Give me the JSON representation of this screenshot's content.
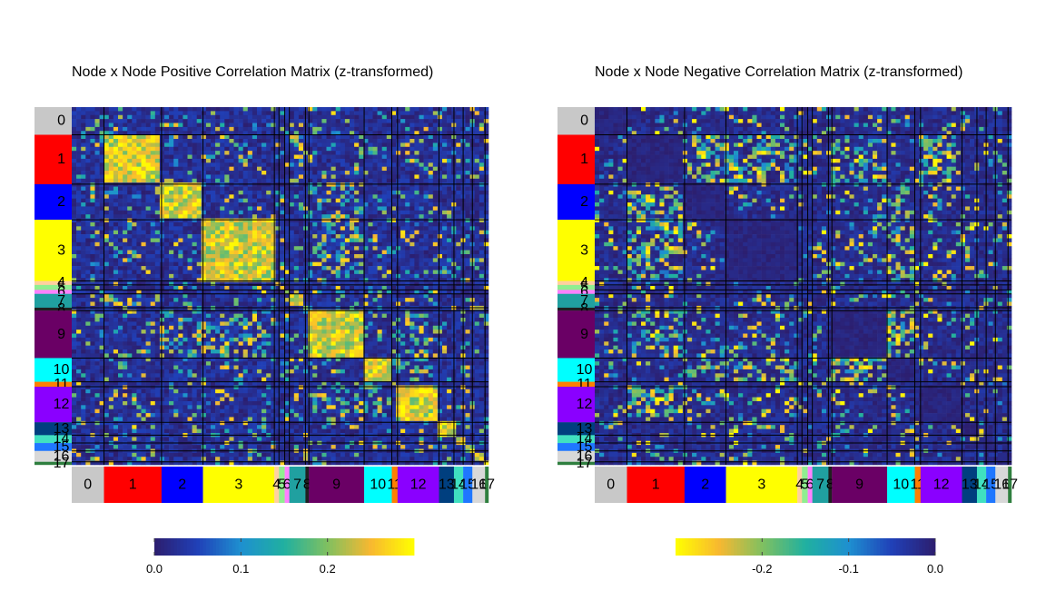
{
  "modules": {
    "labels": [
      "0",
      "1",
      "2",
      "3",
      "4",
      "5",
      "6",
      "7",
      "8",
      "9",
      "10",
      "11",
      "12",
      "13",
      "14",
      "15",
      "16",
      "17"
    ],
    "sizes": [
      28,
      50,
      36,
      62,
      4,
      5,
      4,
      14,
      3,
      48,
      24,
      5,
      36,
      13,
      8,
      8,
      11,
      3
    ],
    "colors": [
      "#c8c8c8",
      "#ff0000",
      "#0000ff",
      "#ffff00",
      "#ffd0a0",
      "#90ee90",
      "#ff80ff",
      "#20a0a0",
      "#202020",
      "#6a0065",
      "#00ffff",
      "#ff7f00",
      "#8a00ff",
      "#003f7f",
      "#40e0c0",
      "#1f77ff",
      "#d8d8d8",
      "#2f7f3f"
    ]
  },
  "chart_data": [
    {
      "type": "heatmap",
      "title": "Node x Node Positive Correlation Matrix (z-transformed)",
      "colorbar": {
        "ticks": [
          "0.0",
          "0.1",
          "0.2"
        ],
        "range": [
          0,
          0.3
        ],
        "direction": "ascending"
      },
      "block_pattern": "modules form bright (high) blocks on the diagonal; off-diagonal mostly low with scattered high values",
      "colormap": [
        "#2c1e6e",
        "#2040b8",
        "#1e90d0",
        "#20b0a0",
        "#80c060",
        "#f8b830",
        "#ffff00"
      ]
    },
    {
      "type": "heatmap",
      "title": "Node x Node Negative Correlation Matrix (z-transformed)",
      "colorbar": {
        "ticks": [
          "-0.2",
          "-0.1",
          "0.0"
        ],
        "range": [
          -0.3,
          0
        ],
        "direction": "descending"
      },
      "block_pattern": "diagonal blocks dark (near zero); strongly negative values appear between antagonistic modules",
      "colormap": [
        "#ffff00",
        "#f8b830",
        "#80c060",
        "#20b0a0",
        "#1e90d0",
        "#2040b8",
        "#2c1e6e"
      ]
    }
  ]
}
